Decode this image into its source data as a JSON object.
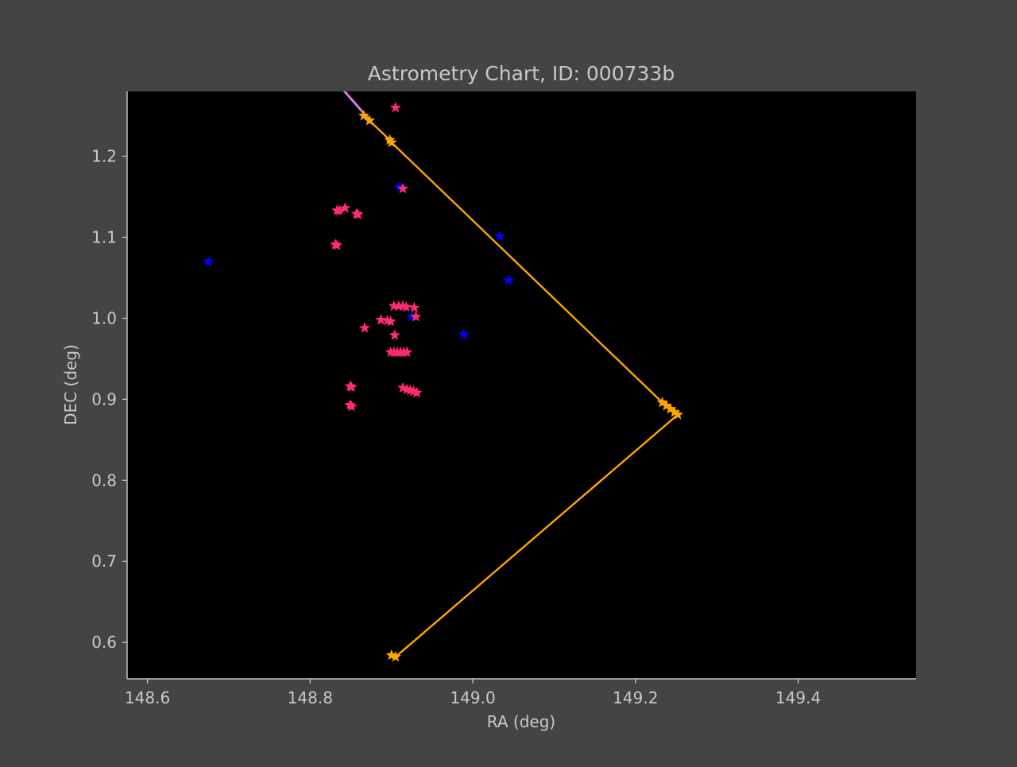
{
  "chart_data": {
    "type": "scatter",
    "title": "Astrometry Chart, ID: 000733b",
    "xlabel": "RA (deg)",
    "ylabel": "DEC (deg)",
    "xlim": [
      148.575,
      149.545
    ],
    "ylim": [
      0.555,
      1.28
    ],
    "xticks": [
      148.6,
      148.8,
      149.0,
      149.2,
      149.4
    ],
    "yticks": [
      0.6,
      0.7,
      0.8,
      0.9,
      1.0,
      1.1,
      1.2
    ],
    "xtick_labels": [
      "148.6",
      "148.8",
      "149.0",
      "149.2",
      "149.4"
    ],
    "ytick_labels": [
      "0.6",
      "0.7",
      "0.8",
      "0.9",
      "1.0",
      "1.1",
      "1.2"
    ],
    "grid": false,
    "colors": {
      "figure_bg": "#444444",
      "axes_bg": "#000000",
      "axis_text": "#c8c8c8",
      "blue_stars": "#0000ff",
      "pink_stars": "#ff2d6e",
      "track": "#ffa500",
      "track_tail": "#dd77dd"
    },
    "series": [
      {
        "kind": "scatter",
        "marker": "star",
        "color": "#0000ff",
        "points": [
          [
            148.675,
            1.07
          ],
          [
            148.91,
            1.162
          ],
          [
            149.033,
            1.101
          ],
          [
            149.044,
            1.047
          ],
          [
            148.925,
            1.002
          ],
          [
            148.989,
            0.98
          ]
        ]
      },
      {
        "kind": "scatter",
        "marker": "star",
        "color": "#ff2d6e",
        "points": [
          [
            148.905,
            1.26
          ],
          [
            148.914,
            1.16
          ],
          [
            148.833,
            1.133
          ],
          [
            148.836,
            1.133
          ],
          [
            148.843,
            1.136
          ],
          [
            148.857,
            1.129
          ],
          [
            148.859,
            1.128
          ],
          [
            148.831,
            1.091
          ],
          [
            148.833,
            1.09
          ],
          [
            148.903,
            1.015
          ],
          [
            148.909,
            1.015
          ],
          [
            148.914,
            1.015
          ],
          [
            148.918,
            1.014
          ],
          [
            148.928,
            1.013
          ],
          [
            148.93,
            1.002
          ],
          [
            148.887,
            0.998
          ],
          [
            148.895,
            0.997
          ],
          [
            148.899,
            0.996
          ],
          [
            148.867,
            0.988
          ],
          [
            148.904,
            0.979
          ],
          [
            148.899,
            0.958
          ],
          [
            148.903,
            0.958
          ],
          [
            148.907,
            0.958
          ],
          [
            148.911,
            0.958
          ],
          [
            148.915,
            0.958
          ],
          [
            148.919,
            0.958
          ],
          [
            148.849,
            0.916
          ],
          [
            148.851,
            0.915
          ],
          [
            148.914,
            0.914
          ],
          [
            148.919,
            0.912
          ],
          [
            148.923,
            0.911
          ],
          [
            148.927,
            0.91
          ],
          [
            148.931,
            0.908
          ],
          [
            148.849,
            0.893
          ],
          [
            148.851,
            0.891
          ]
        ]
      },
      {
        "kind": "line",
        "color": "#dd77dd",
        "points": [
          [
            148.838,
            1.285
          ],
          [
            148.873,
            1.245
          ]
        ]
      },
      {
        "kind": "line",
        "marker": "star",
        "color": "#ffa500",
        "points": [
          [
            148.866,
            1.25
          ],
          [
            148.873,
            1.244
          ],
          [
            148.898,
            1.22
          ],
          [
            148.9,
            1.217
          ],
          [
            149.233,
            0.896
          ],
          [
            149.238,
            0.892
          ],
          [
            149.243,
            0.888
          ],
          [
            149.248,
            0.884
          ],
          [
            149.252,
            0.881
          ],
          [
            148.905,
            0.582
          ],
          [
            148.9,
            0.584
          ]
        ]
      }
    ]
  }
}
